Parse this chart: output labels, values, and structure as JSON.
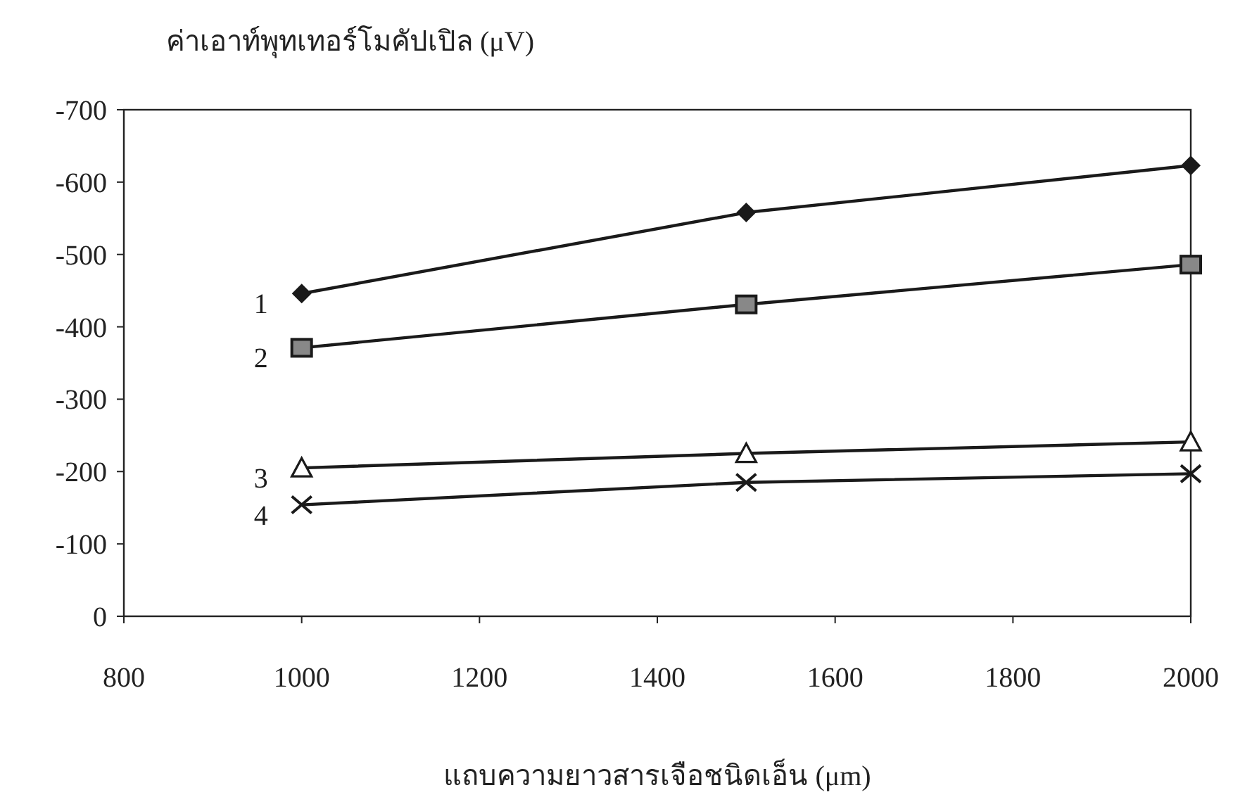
{
  "chart_data": {
    "type": "line",
    "ylabel": "ค่าเอาท์พุทเทอร์โมคัปเปิล (μV)",
    "xlabel": "แถบความยาวสารเจือชนิดเอ็น (μm)",
    "x": [
      1000,
      1500,
      2000
    ],
    "xlim": [
      800,
      2000
    ],
    "xticks": [
      800,
      1000,
      1200,
      1400,
      1600,
      1800,
      2000
    ],
    "ylim": [
      0,
      -700
    ],
    "yticks": [
      0,
      -100,
      -200,
      -300,
      -400,
      -500,
      -600,
      -700
    ],
    "grid": false,
    "line_style": "solid",
    "series": [
      {
        "name": "1",
        "color": "#1a1a1a",
        "marker": "diamond",
        "values": [
          -446,
          -558,
          -623
        ]
      },
      {
        "name": "2",
        "color": "#1a1a1a",
        "marker": "square",
        "values": [
          -371,
          -431,
          -486
        ]
      },
      {
        "name": "3",
        "color": "#1a1a1a",
        "marker": "triangle",
        "values": [
          -205,
          -225,
          -241
        ]
      },
      {
        "name": "4",
        "color": "#1a1a1a",
        "marker": "cross",
        "values": [
          -154,
          -185,
          -197
        ]
      }
    ]
  }
}
